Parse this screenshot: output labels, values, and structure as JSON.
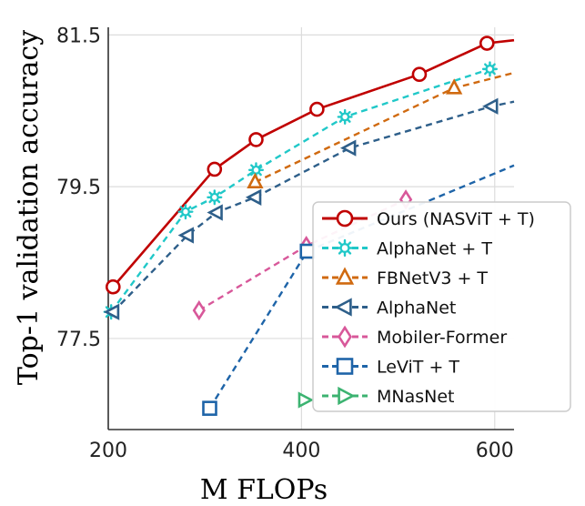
{
  "chart_data": {
    "type": "line",
    "xlabel": "M FLOPs",
    "ylabel": "Top-1 validation accuracy",
    "xlim": [
      200,
      620
    ],
    "ylim": [
      76.3,
      81.6
    ],
    "x_ticks": [
      "200",
      "400",
      "600"
    ],
    "x_tick_values": [
      200,
      400,
      600
    ],
    "y_ticks": [
      "81.5",
      "79.5",
      "77.5"
    ],
    "y_tick_values": [
      81.5,
      79.5,
      77.5
    ],
    "grid": true,
    "legend_position": "lower-right",
    "series": [
      {
        "name": "Ours (NASViT + T)",
        "color": "#c00000",
        "marker": "circle",
        "dash": "solid",
        "x": [
          205,
          310,
          353,
          416,
          522,
          592,
          620
        ],
        "y": [
          78.18,
          79.73,
          80.12,
          80.52,
          80.98,
          81.39,
          81.43
        ]
      },
      {
        "name": "AlphaNet + T",
        "color": "#20c8c8",
        "marker": "star",
        "dash": "dashed",
        "x": [
          203,
          280,
          310,
          353,
          445,
          595
        ],
        "y": [
          77.85,
          79.17,
          79.36,
          79.72,
          80.42,
          81.05
        ]
      },
      {
        "name": "FBNetV3 + T",
        "color": "#d06a10",
        "marker": "triangle-up",
        "dash": "dashed",
        "x": [
          352,
          558,
          620
        ],
        "y": [
          79.56,
          80.8,
          81.0
        ]
      },
      {
        "name": "AlphaNet",
        "color": "#2e5f8a",
        "marker": "triangle-left",
        "dash": "dashed",
        "x": [
          205,
          282,
          312,
          352,
          450,
          597,
          620
        ],
        "y": [
          77.85,
          78.86,
          79.16,
          79.36,
          80.01,
          80.56,
          80.62
        ]
      },
      {
        "name": "Mobiler-Former",
        "color": "#d8589a",
        "marker": "diamond",
        "dash": "dashed",
        "x": [
          294,
          405,
          508
        ],
        "y": [
          77.87,
          78.72,
          79.33
        ]
      },
      {
        "name": "LeViT + T",
        "color": "#1e64a8",
        "marker": "square",
        "dash": "dashed",
        "x": [
          305,
          406,
          620
        ],
        "y": [
          76.58,
          78.65,
          79.78
        ]
      },
      {
        "name": "MNasNet",
        "color": "#3cb371",
        "marker": "triangle-right",
        "dash": "dashed",
        "x": [
          403
        ],
        "y": [
          76.69
        ]
      }
    ]
  }
}
